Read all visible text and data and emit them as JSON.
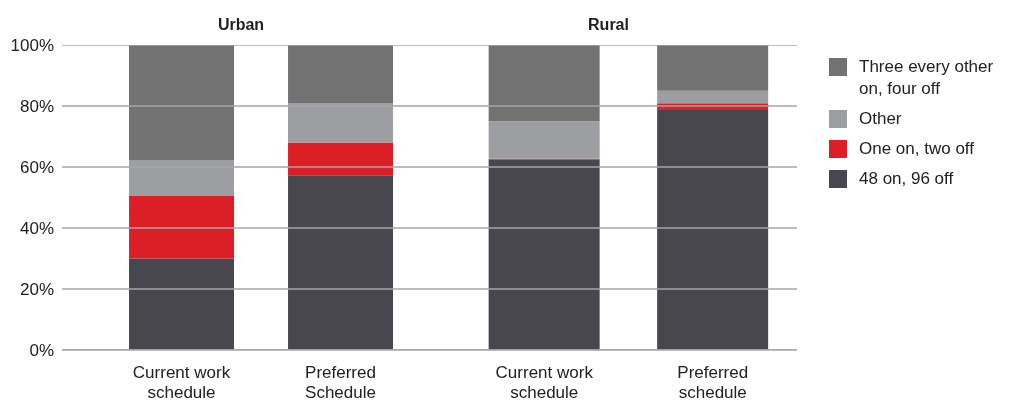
{
  "chart_data": [
    {
      "type": "bar",
      "title": "Urban",
      "stacked": true,
      "categories": [
        "Current work schedule",
        "Preferred Schedule"
      ],
      "series": [
        {
          "color": "#48464f",
          "values": [
            30,
            57.3
          ]
        },
        {
          "color": "#dc1f26",
          "values": [
            20.5,
            10.7
          ]
        },
        {
          "color": "#9d9ea2",
          "values": [
            11.8,
            12.8
          ]
        },
        {
          "color": "#727272",
          "values": [
            37.7,
            19.2
          ]
        }
      ],
      "ylim": [
        0,
        100
      ],
      "yticks": [
        {
          "value": 0,
          "label": "0%"
        },
        {
          "value": 20,
          "label": "20%"
        },
        {
          "value": 40,
          "label": "40%"
        },
        {
          "value": 60,
          "label": "60%"
        },
        {
          "value": 80,
          "label": "80%"
        },
        {
          "value": 100,
          "label": "100%"
        }
      ],
      "grid": "y",
      "legend": false
    },
    {
      "type": "bar",
      "title": "Rural",
      "stacked": true,
      "categories": [
        "Current work schedule",
        "Preferred schedule"
      ],
      "series": [
        {
          "name": "48 on, 96 off",
          "color": "#48464f",
          "values": [
            62.4,
            78.7
          ]
        },
        {
          "name": "One on, two off",
          "color": "#dc1f26",
          "values": [
            0.3,
            2.2
          ]
        },
        {
          "name": "Other",
          "color": "#9d9ea2",
          "values": [
            12.3,
            4.1
          ]
        },
        {
          "name": "Three every other on, four off",
          "color": "#727272",
          "values": [
            25,
            15
          ]
        }
      ],
      "ylim": [
        0,
        100
      ],
      "yticks": [
        0,
        20,
        40,
        60,
        80,
        100
      ],
      "grid": "y",
      "legend": "right",
      "tick_labels": "x"
    }
  ]
}
